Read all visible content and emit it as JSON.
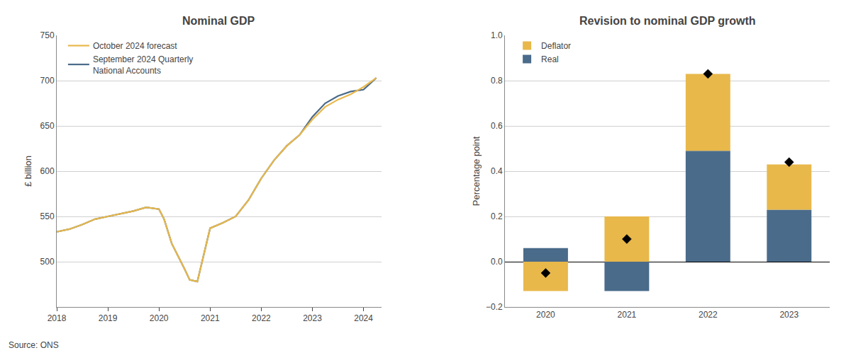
{
  "chart_data": [
    {
      "type": "line",
      "title": "Nominal GDP",
      "ylabel": "£ billion",
      "annotations": [
        "Source: ONS"
      ],
      "x": [
        2018.0,
        2018.25,
        2018.5,
        2018.75,
        2019.0,
        2019.25,
        2019.5,
        2019.75,
        2020.0,
        2020.1,
        2020.25,
        2020.5,
        2020.6,
        2020.75,
        2021.0,
        2021.25,
        2021.5,
        2021.75,
        2022.0,
        2022.25,
        2022.5,
        2022.75,
        2023.0,
        2023.25,
        2023.5,
        2023.75,
        2024.0,
        2024.25
      ],
      "series": [
        {
          "name": "September 2024 Quarterly\nNational Accounts",
          "color": "#4A6B8A",
          "values": [
            533,
            536,
            541,
            547,
            550,
            553,
            556,
            560,
            558,
            547,
            520,
            492,
            480,
            478,
            537,
            543,
            550,
            568,
            592,
            612,
            628,
            640,
            660,
            675,
            683,
            688,
            690,
            703
          ]
        },
        {
          "name": "October 2024 forecast",
          "color": "#E8B84B",
          "values": [
            533,
            536,
            541,
            547,
            550,
            553,
            556,
            560,
            558,
            547,
            520,
            492,
            480,
            478,
            537,
            543,
            550,
            568,
            592,
            612,
            628,
            640,
            657,
            671,
            679,
            685,
            693,
            703
          ]
        }
      ],
      "xlim": [
        2018,
        2024.35
      ],
      "xticks": [
        2018,
        2019,
        2020,
        2021,
        2022,
        2023,
        2024
      ],
      "ylim": [
        450,
        750
      ],
      "yticks": [
        500,
        550,
        600,
        650,
        700,
        750
      ],
      "grid": true,
      "legend": "upper left"
    },
    {
      "type": "bar",
      "title": "Revision to nominal GDP growth",
      "ylabel": "Percentage point",
      "categories": [
        "2020",
        "2021",
        "2022",
        "2023"
      ],
      "stacked": true,
      "series": [
        {
          "name": "Real",
          "color": "#4A6B8A",
          "values": [
            0.06,
            -0.13,
            0.49,
            0.23
          ]
        },
        {
          "name": "Deflator",
          "color": "#E8B84B",
          "values": [
            -0.13,
            0.2,
            0.34,
            0.2
          ]
        },
        {
          "type": "scatter",
          "marker": "diamond",
          "color": "#000000",
          "values": [
            -0.05,
            0.1,
            0.83,
            0.44
          ]
        }
      ],
      "ylim": [
        -0.2,
        1.0
      ],
      "yticks": [
        {
          "value": -0.2,
          "label": "−0.2"
        },
        {
          "value": 0.0,
          "label": "0.0"
        },
        {
          "value": 0.2,
          "label": "0.2"
        },
        {
          "value": 0.4,
          "label": "0.4"
        },
        {
          "value": 0.6,
          "label": "0.6"
        },
        {
          "value": 0.8,
          "label": "0.8"
        },
        {
          "value": 1.0,
          "label": "1.0"
        }
      ],
      "grid": true,
      "legend": "upper left"
    }
  ]
}
